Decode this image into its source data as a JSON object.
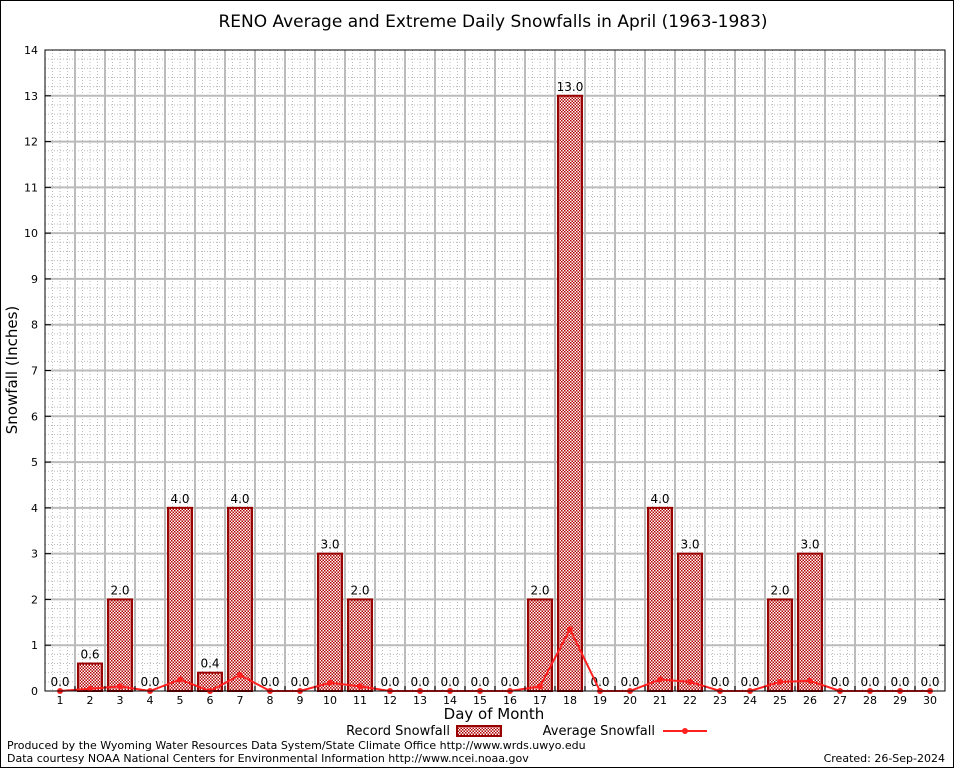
{
  "chart_data": {
    "type": "bar",
    "title": "RENO Average and Extreme Daily Snowfalls in April (1963-1983)",
    "xlabel": "Day of Month",
    "ylabel": "Snowfall (Inches)",
    "ylim": [
      0,
      14
    ],
    "yticks": [
      "0",
      "1",
      "2",
      "3",
      "4",
      "5",
      "6",
      "7",
      "8",
      "9",
      "10",
      "11",
      "12",
      "13",
      "14"
    ],
    "categories": [
      "1",
      "2",
      "3",
      "4",
      "5",
      "6",
      "7",
      "8",
      "9",
      "10",
      "11",
      "12",
      "13",
      "14",
      "15",
      "16",
      "17",
      "18",
      "19",
      "20",
      "21",
      "22",
      "23",
      "24",
      "25",
      "26",
      "27",
      "28",
      "29",
      "30"
    ],
    "grid": true,
    "legend_position": "bottom-center",
    "series": [
      {
        "name": "Record Snowfall",
        "kind": "bar",
        "color": "#990000",
        "values": [
          0.0,
          0.6,
          2.0,
          0.0,
          4.0,
          0.4,
          4.0,
          0.0,
          0.0,
          3.0,
          2.0,
          0.0,
          0.0,
          0.0,
          0.0,
          0.0,
          2.0,
          13.0,
          0.0,
          0.0,
          4.0,
          3.0,
          0.0,
          0.0,
          2.0,
          3.0,
          0.0,
          0.0,
          0.0,
          0.0
        ],
        "labels": [
          "0.0",
          "0.6",
          "2.0",
          "0.0",
          "4.0",
          "0.4",
          "4.0",
          "0.0",
          "0.0",
          "3.0",
          "2.0",
          "0.0",
          "0.0",
          "0.0",
          "0.0",
          "0.0",
          "2.0",
          "13.0",
          "0.0",
          "0.0",
          "4.0",
          "3.0",
          "0.0",
          "0.0",
          "2.0",
          "3.0",
          "0.0",
          "0.0",
          "0.0",
          "0.0"
        ]
      },
      {
        "name": "Average Snowfall",
        "kind": "line",
        "color": "#ff2020",
        "values": [
          0.0,
          0.05,
          0.1,
          0.0,
          0.25,
          0.0,
          0.35,
          0.0,
          0.0,
          0.18,
          0.1,
          0.0,
          0.0,
          0.0,
          0.0,
          0.0,
          0.1,
          1.35,
          0.0,
          0.0,
          0.25,
          0.2,
          0.0,
          0.0,
          0.2,
          0.22,
          0.0,
          0.0,
          0.0,
          0.0
        ]
      }
    ]
  },
  "footer": {
    "produced_by": "Produced by the Wyoming Water Resources Data System/State Climate Office http://www.wrds.uwyo.edu",
    "data_courtesy": "Data courtesy NOAA National Centers for Environmental Information http://www.ncei.noaa.gov",
    "created": "Created:  26-Sep-2024"
  }
}
